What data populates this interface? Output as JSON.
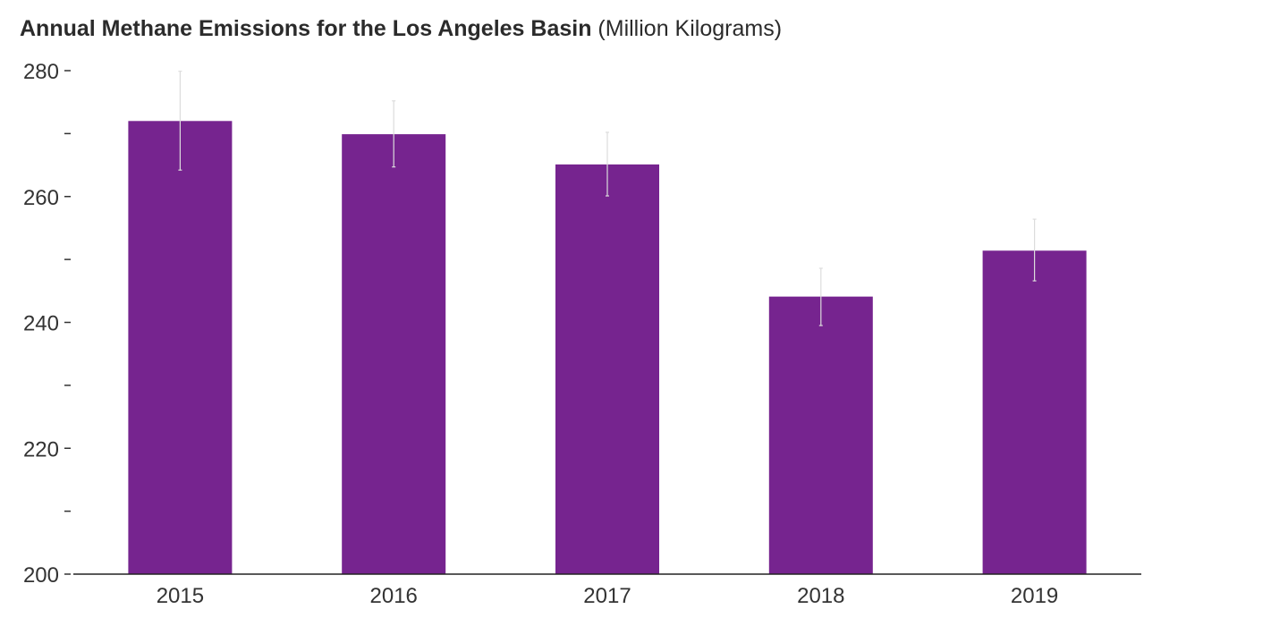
{
  "chart_data": {
    "type": "bar",
    "title": "Annual Methane Emissions for the Los Angeles Basin",
    "subtitle": "(Million Kilograms)",
    "categories": [
      "2015",
      "2016",
      "2017",
      "2018",
      "2019"
    ],
    "values": [
      272.0,
      269.9,
      265.1,
      244.1,
      251.4
    ],
    "error_low": [
      264.2,
      264.7,
      260.1,
      239.5,
      246.6
    ],
    "error_high": [
      279.9,
      275.2,
      270.2,
      248.6,
      256.4
    ],
    "ylim": [
      200,
      280
    ],
    "yticks": [
      200,
      210,
      220,
      230,
      240,
      250,
      260,
      270,
      280
    ],
    "ytick_labels": [
      "200",
      "",
      "220",
      "",
      "240",
      "",
      "260",
      "",
      "280"
    ],
    "xlabel": "",
    "ylabel": "",
    "grid": false,
    "colors": {
      "bar": "#76248f",
      "error_bar": "#dcdcdc",
      "axis": "#222222"
    }
  }
}
